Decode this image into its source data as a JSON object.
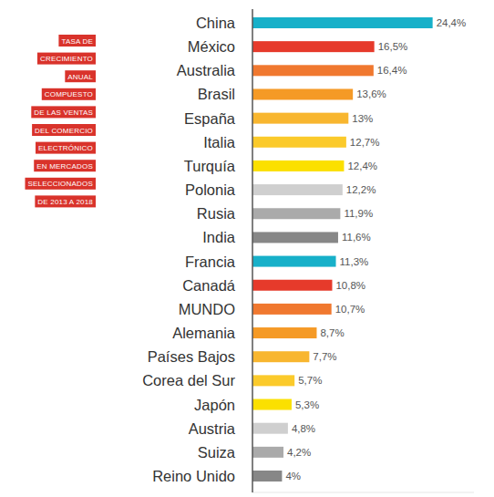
{
  "chart_data": {
    "type": "bar",
    "orientation": "horizontal",
    "title": [
      "TASA DE",
      "CRECIMIENTO",
      "ANUAL",
      "COMPUESTO",
      "DE LAS VENTAS",
      "DEL COMERCIO",
      "ELECTRÓNICO",
      "EN MERCADOS",
      "SELECCIONADOS",
      "DE 2013 A 2018"
    ],
    "categories": [
      "China",
      "México",
      "Australia",
      "Brasil",
      "España",
      "Italia",
      "Turquía",
      "Polonia",
      "Rusia",
      "India",
      "Francia",
      "Canadá",
      "MUNDO",
      "Alemania",
      "Países Bajos",
      "Corea del Sur",
      "Japón",
      "Austria",
      "Suiza",
      "Reino Unido"
    ],
    "values": [
      24.4,
      16.5,
      16.4,
      13.6,
      13,
      12.7,
      12.4,
      12.2,
      11.9,
      11.6,
      11.3,
      10.8,
      10.7,
      8.7,
      7.7,
      5.7,
      5.3,
      4.8,
      4.2,
      4
    ],
    "value_labels": [
      "24,4%",
      "16,5%",
      "16,4%",
      "13,6%",
      "13%",
      "12,7%",
      "12,4%",
      "12,2%",
      "11,9%",
      "11,6%",
      "11,3%",
      "10,8%",
      "10,7%",
      "8,7%",
      "7,7%",
      "5,7%",
      "5,3%",
      "4,8%",
      "4,2%",
      "4%"
    ],
    "colors": [
      "#17b0c9",
      "#e63a2b",
      "#f0782f",
      "#f59a26",
      "#f8b62f",
      "#fbca2b",
      "#fbe000",
      "#cfcfcf",
      "#aaaaaa",
      "#878787",
      "#17b0c9",
      "#e63a2b",
      "#f0782f",
      "#f59a26",
      "#f8b62f",
      "#fbca2b",
      "#fbe000",
      "#cfcfcf",
      "#aaaaaa",
      "#878787"
    ],
    "xlim": [
      0,
      30
    ],
    "data_labels": true,
    "tick_labels": "y",
    "grid": false
  }
}
